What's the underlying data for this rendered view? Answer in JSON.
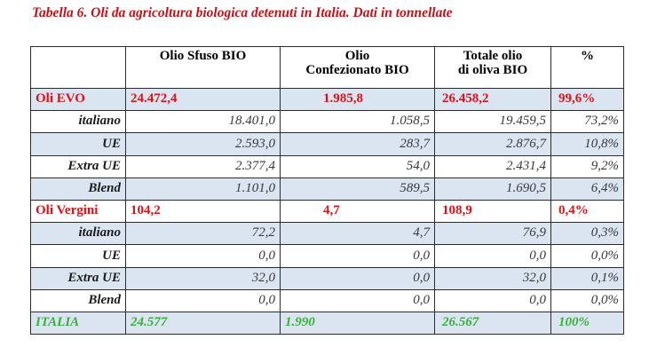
{
  "title": "Tabella 6. Oli da agricoltura biologica detenuti in Italia. Dati in tonnellate",
  "headers": [
    "",
    "Olio Sfuso BIO",
    "Olio\nConfezionato BIO",
    "Totale olio\ndi oliva BIO",
    "%"
  ],
  "sections": [
    {
      "label": "Oli EVO",
      "values": [
        "24.472,4",
        "1.985,8",
        "26.458,2",
        "99,6%"
      ],
      "rows": [
        {
          "label": "italiano",
          "values": [
            "18.401,0",
            "1.058,5",
            "19.459,5",
            "73,2%"
          ]
        },
        {
          "label": "UE",
          "values": [
            "2.593,0",
            "283,7",
            "2.876,7",
            "10,8%"
          ]
        },
        {
          "label": "Extra UE",
          "values": [
            "2.377,4",
            "54,0",
            "2.431,4",
            "9,2%"
          ]
        },
        {
          "label": "Blend",
          "values": [
            "1.101,0",
            "589,5",
            "1.690,5",
            "6,4%"
          ]
        }
      ]
    },
    {
      "label": "Oli Vergini",
      "values": [
        "104,2",
        "4,7",
        "108,9",
        "0,4%"
      ],
      "rows": [
        {
          "label": "italiano",
          "values": [
            "72,2",
            "4,7",
            "76,9",
            "0,3%"
          ]
        },
        {
          "label": "UE",
          "values": [
            "0,0",
            "0,0",
            "0,0",
            "0,0%"
          ]
        },
        {
          "label": "Extra UE",
          "values": [
            "32,0",
            "0,0",
            "32,0",
            "0,1%"
          ]
        },
        {
          "label": "Blend",
          "values": [
            "0,0",
            "0,0",
            "0,0",
            "0,0%"
          ]
        }
      ]
    }
  ],
  "total": {
    "label": "ITALIA",
    "values": [
      "24.577",
      "1.990",
      "26.567",
      "100%"
    ]
  },
  "colors": {
    "title": "#c0141b",
    "section_text": "#d8141b",
    "total_text": "#38b03a",
    "shade": "#dbe5f1"
  }
}
